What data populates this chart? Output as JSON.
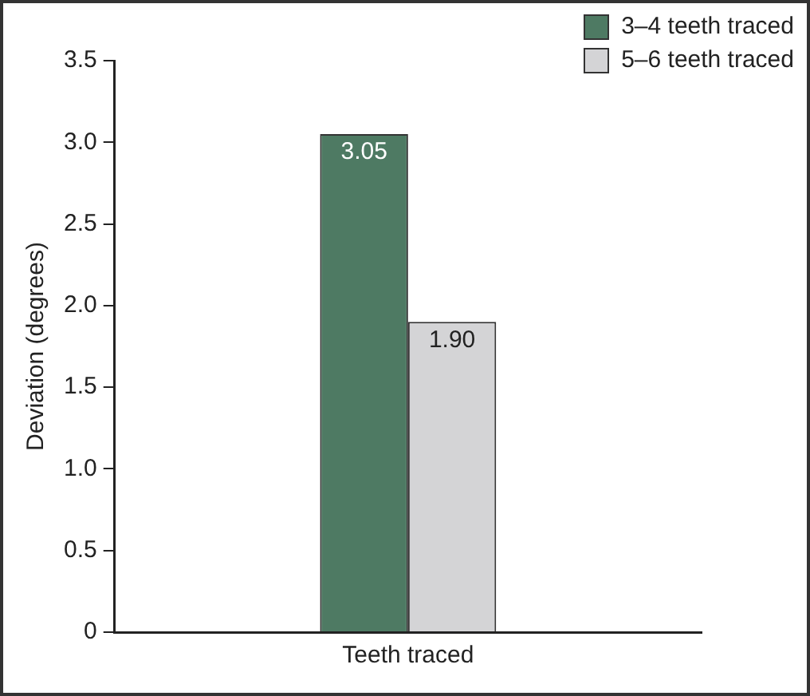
{
  "chart_data": {
    "type": "bar",
    "ylabel": "Deviation (degrees)",
    "categories": [
      "Teeth traced"
    ],
    "series": [
      {
        "name": "3–4 teeth traced",
        "color": "#4e7a63",
        "values": [
          3.05
        ],
        "value_labels": [
          "3.05"
        ]
      },
      {
        "name": "5–6 teeth traced",
        "color": "#d4d4d6",
        "values": [
          1.9
        ],
        "value_labels": [
          "1.90"
        ]
      }
    ],
    "ylim": [
      0,
      3.5
    ],
    "yticks": [
      0,
      {
        "value": 0.5,
        "label": "0.5"
      },
      {
        "value": 1,
        "label": "1.0"
      },
      {
        "value": 1.5,
        "label": "1.5"
      },
      {
        "value": 2,
        "label": "2.0"
      },
      {
        "value": 2.5,
        "label": "2.5"
      },
      {
        "value": 3,
        "label": "3.0"
      },
      {
        "value": 3.5,
        "label": "3.5"
      }
    ],
    "grid": false,
    "legend": "top right"
  }
}
